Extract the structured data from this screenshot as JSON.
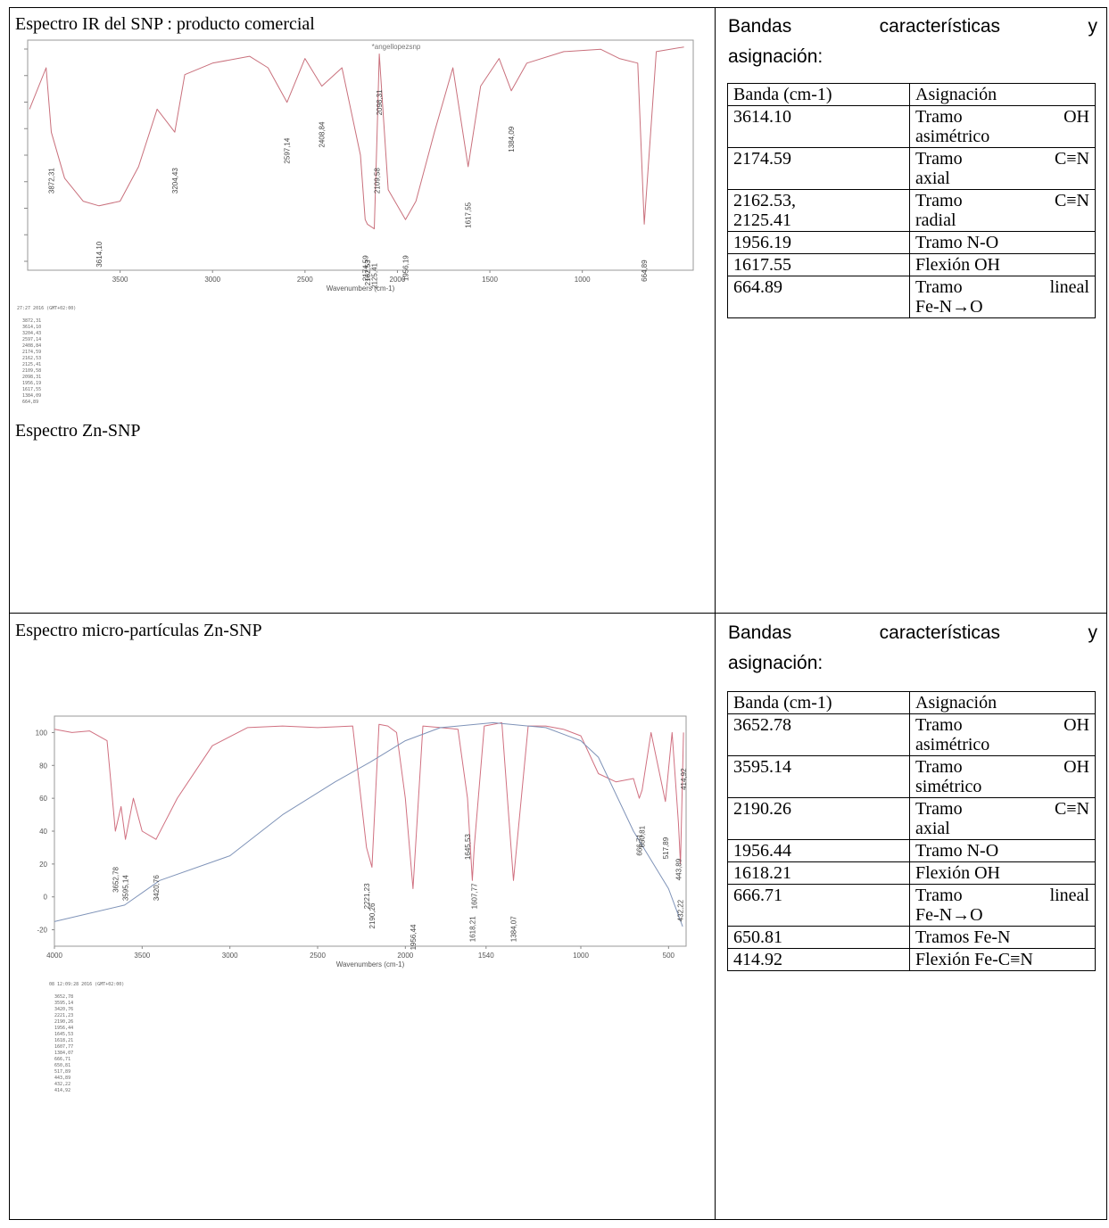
{
  "top": {
    "title": "Espectro IR del SNP : producto comercial",
    "subtitle": "Espectro Zn-SNP",
    "header_words": [
      "Bandas",
      "características",
      "y"
    ],
    "header_line2": "asignación:",
    "table_headers": [
      "Banda (cm-1)",
      "Asignación"
    ],
    "rows": [
      {
        "band": "3614.10",
        "asg": [
          "Tramo",
          "OH"
        ],
        "asg2": "asimétrico"
      },
      {
        "band": "2174.59",
        "asg": [
          "Tramo",
          "C≡N"
        ],
        "asg2": "axial"
      },
      {
        "band": "2162.53,",
        "band2": "2125.41",
        "asg": [
          "Tramo",
          "C≡N"
        ],
        "asg2": "radial"
      },
      {
        "band": "1956.19",
        "asg": [
          "Tramo N-O"
        ]
      },
      {
        "band": "1617.55",
        "asg": [
          "Flexión OH"
        ]
      },
      {
        "band": "664.89",
        "asg": [
          "Tramo",
          "lineal"
        ],
        "asg2": "Fe-N→O"
      }
    ]
  },
  "bottom": {
    "title": "Espectro micro-partículas Zn-SNP",
    "header_words": [
      "Bandas",
      "características",
      "y"
    ],
    "header_line2": "asignación:",
    "table_headers": [
      "Banda (cm-1)",
      "Asignación"
    ],
    "rows": [
      {
        "band": "3652.78",
        "asg": [
          "Tramo",
          "OH"
        ],
        "asg2": "asimétrico"
      },
      {
        "band": "3595.14",
        "asg": [
          "Tramo",
          "OH"
        ],
        "asg2": "simétrico"
      },
      {
        "band": "2190.26",
        "asg": [
          "Tramo",
          "C≡N"
        ],
        "asg2": "axial"
      },
      {
        "band": "1956.44",
        "asg": [
          "Tramo N-O"
        ]
      },
      {
        "band": "1618.21",
        "asg": [
          "Flexión OH"
        ]
      },
      {
        "band": "666.71",
        "asg": [
          "Tramo",
          "lineal"
        ],
        "asg2": "Fe-N→O"
      },
      {
        "band": "650.81",
        "asg": [
          "Tramos Fe-N"
        ]
      },
      {
        "band": "414.92",
        "asg": [
          "Flexión Fe-C≡N"
        ]
      }
    ]
  },
  "chart_data": [
    {
      "type": "line",
      "title": "*angellopezsnp",
      "xlabel": "Wavenumbers (cm-1)",
      "ylabel": "",
      "x_ticks": [
        "3500",
        "3000",
        "2500",
        "2000",
        "1500",
        "1000"
      ],
      "xlim": [
        4000,
        400
      ],
      "series": [
        {
          "color": "#c9707c",
          "x": [
            3990,
            3900,
            3872.31,
            3800,
            3700,
            3614.1,
            3500,
            3400,
            3300,
            3204.43,
            3150,
            3000,
            2800,
            2700,
            2597.14,
            2500,
            2408.84,
            2300,
            2200,
            2174.59,
            2162.53,
            2125.41,
            2109.58,
            2098.31,
            2050,
            1956.19,
            1900,
            1800,
            1700,
            1617.55,
            1550,
            1450,
            1384.09,
            1300,
            1100,
            900,
            800,
            700,
            664.89,
            600,
            450
          ],
          "y": [
            70,
            88,
            60,
            40,
            30,
            28,
            30,
            45,
            70,
            60,
            85,
            90,
            93,
            88,
            73,
            92,
            80,
            88,
            50,
            22,
            20,
            18,
            60,
            94,
            35,
            22,
            30,
            60,
            88,
            45,
            80,
            92,
            78,
            90,
            95,
            96,
            92,
            90,
            20,
            95,
            97
          ]
        }
      ],
      "peak_labels": [
        "3872,31",
        "3614,10",
        "3204,43",
        "2597,14",
        "2408,84",
        "2174,59",
        "2162,53",
        "2125,41",
        "2109,58",
        "2098,31",
        "1956,19",
        "1617,55",
        "1384,09",
        "664,89"
      ],
      "printout_header": "27:27 2016 (GMT+02:00)"
    },
    {
      "type": "line",
      "title": "",
      "xlabel": "Wavenumbers (cm-1)",
      "ylabel": "",
      "x_ticks": [
        "4000",
        "3500",
        "3000",
        "2500",
        "2000",
        "1540",
        "1000",
        "500"
      ],
      "y_ticks": [
        "100",
        "80",
        "60",
        "40",
        "20",
        "0",
        "-20"
      ],
      "xlim": [
        4000,
        400
      ],
      "ylim": [
        -30,
        110
      ],
      "series": [
        {
          "color": "#d07080",
          "x": [
            4000,
            3900,
            3800,
            3700,
            3652.78,
            3620,
            3595.14,
            3550,
            3500,
            3420.76,
            3300,
            3100,
            2900,
            2700,
            2500,
            2300,
            2221.23,
            2190.26,
            2150,
            2100,
            2050,
            2000,
            1956.44,
            1900,
            1800,
            1700,
            1645.53,
            1618.21,
            1607.77,
            1550,
            1450,
            1384.07,
            1300,
            1200,
            1100,
            1000,
            900,
            800,
            700,
            666.71,
            650.81,
            600,
            517.89,
            480,
            443.89,
            432.22,
            414.92
          ],
          "y": [
            102,
            100,
            101,
            95,
            40,
            55,
            35,
            60,
            40,
            35,
            60,
            92,
            103,
            104,
            103,
            104,
            30,
            18,
            105,
            104,
            100,
            60,
            5,
            104,
            103,
            102,
            60,
            10,
            30,
            104,
            106,
            10,
            104,
            104,
            102,
            98,
            75,
            70,
            72,
            60,
            65,
            100,
            58,
            100,
            45,
            20,
            100
          ]
        },
        {
          "color": "#7f93b8",
          "x": [
            4000,
            3600,
            3400,
            3000,
            2700,
            2400,
            2200,
            2000,
            1800,
            1500,
            1300,
            1200,
            1000,
            900,
            700,
            500,
            420
          ],
          "y": [
            -15,
            -5,
            10,
            25,
            50,
            70,
            82,
            95,
            103,
            106,
            104,
            103,
            95,
            85,
            40,
            5,
            -18
          ]
        }
      ],
      "peak_labels": [
        "3652,78",
        "3595,14",
        "3420,76",
        "2221,23",
        "2190,26",
        "1956,44",
        "1645,53",
        "1618,21",
        "1607,77",
        "1384,07",
        "666,71",
        "650,81",
        "517,89",
        "443,89",
        "432,22",
        "414,92"
      ],
      "printout_header": "08 12:09:28 2016 (GMT+02:00)"
    }
  ]
}
